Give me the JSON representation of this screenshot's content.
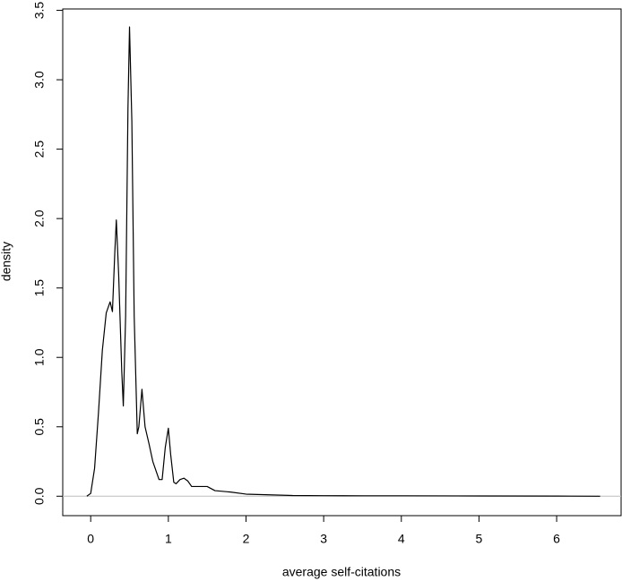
{
  "chart_data": {
    "type": "line",
    "xlabel": "average self-citations",
    "ylabel": "density",
    "x": [
      -0.05,
      0,
      0.05,
      0.1,
      0.15,
      0.2,
      0.25,
      0.28,
      0.31,
      0.33,
      0.36,
      0.4,
      0.42,
      0.45,
      0.48,
      0.5,
      0.53,
      0.56,
      0.6,
      0.62,
      0.66,
      0.7,
      0.75,
      0.8,
      0.88,
      0.92,
      0.96,
      1.0,
      1.03,
      1.07,
      1.1,
      1.15,
      1.2,
      1.25,
      1.3,
      1.4,
      1.5,
      1.6,
      1.8,
      2.0,
      2.3,
      2.6,
      3.0,
      3.5,
      4.0,
      5.0,
      6.0,
      6.56
    ],
    "series": [
      {
        "color": "#000000",
        "values": [
          0,
          0.02,
          0.2,
          0.6,
          1.05,
          1.32,
          1.4,
          1.33,
          1.75,
          1.99,
          1.6,
          0.9,
          0.65,
          1.3,
          2.8,
          3.38,
          2.7,
          1.3,
          0.45,
          0.5,
          0.77,
          0.5,
          0.38,
          0.25,
          0.12,
          0.12,
          0.35,
          0.49,
          0.3,
          0.1,
          0.09,
          0.12,
          0.13,
          0.11,
          0.07,
          0.07,
          0.07,
          0.04,
          0.03,
          0.015,
          0.01,
          0.005,
          0.004,
          0.003,
          0.003,
          0.002,
          0.001,
          0
        ]
      }
    ],
    "xlim": [
      -0.36,
      6.83
    ],
    "xticks": [
      0,
      1,
      2,
      3,
      4,
      5,
      6
    ],
    "ylim": [
      -0.14,
      3.51
    ],
    "yticks": [
      {
        "value": 0,
        "label": "0.0"
      },
      0.5,
      {
        "value": 1,
        "label": "1.0"
      },
      1.5,
      {
        "value": 2,
        "label": "2.0"
      },
      2.5,
      {
        "value": 3,
        "label": "3.0"
      },
      3.5
    ],
    "zero_line": true
  }
}
